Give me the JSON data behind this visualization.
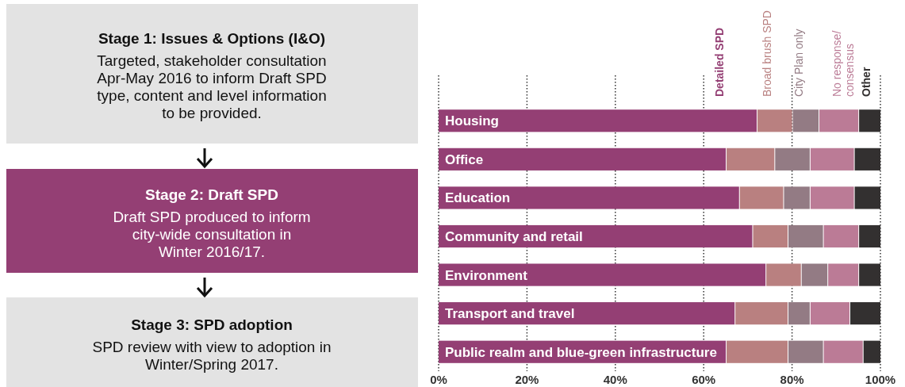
{
  "chart_data": [
    {
      "type": "other",
      "annotations": [
        "Stage 1: Issues & Options (I&O)",
        "Targeted, stakeholder consultation Apr-May 2016 to inform Draft SPD type, content and level information to be provided.",
        "Stage 2: Draft SPD",
        "Draft SPD produced to inform city-wide consultation in Winter 2016/17.",
        "Stage 3: SPD adoption",
        "SPD review with view to adoption in Winter/Spring 2017."
      ]
    },
    {
      "type": "bar",
      "orientation": "horizontal",
      "stacked": true,
      "categories": [
        "Housing",
        "Office",
        "Education",
        "Community and retail",
        "Environment",
        "Transport and travel",
        "Public realm and blue-green infrastructure"
      ],
      "series": [
        {
          "name": "Detailed SPD",
          "color": "#943f74",
          "values": [
            72,
            65,
            68,
            71,
            74,
            67,
            65
          ]
        },
        {
          "name": "Broad brush SPD",
          "color": "#b98080",
          "values": [
            8,
            11,
            10,
            8,
            8,
            12,
            14
          ]
        },
        {
          "name": "City Plan only",
          "color": "#937b84",
          "values": [
            6,
            8,
            6,
            8,
            6,
            5,
            8
          ]
        },
        {
          "name": "No response/\nconsensus",
          "color": "#bb7b96",
          "values": [
            9,
            10,
            10,
            8,
            7,
            9,
            9
          ]
        },
        {
          "name": "Other",
          "color": "#333030",
          "values": [
            5,
            6,
            6,
            5,
            5,
            7,
            4
          ]
        }
      ],
      "xlim": [
        0,
        100
      ],
      "xticks": [
        {
          "value": 0,
          "label": "0%"
        },
        {
          "value": 20,
          "label": "20%"
        },
        {
          "value": 40,
          "label": "40%"
        },
        {
          "value": 60,
          "label": "60%"
        },
        {
          "value": 80,
          "label": "80%"
        },
        {
          "value": 100,
          "label": "100%"
        }
      ],
      "grid": "x",
      "legend": "top"
    }
  ]
}
